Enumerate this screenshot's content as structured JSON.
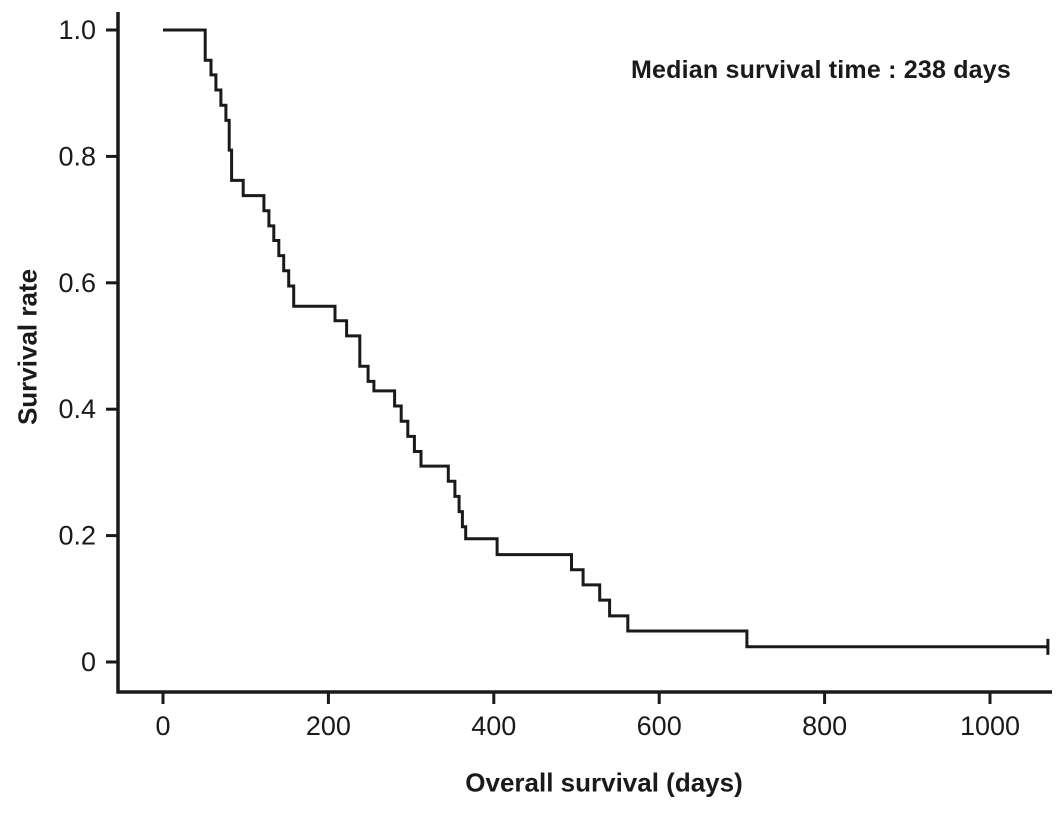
{
  "page": {
    "background": "#ffffff"
  },
  "chart_data": {
    "type": "line",
    "subtype": "kaplan-meier-step-curve",
    "annotation": "Median survival time : 238 days",
    "median_survival_days": 238,
    "xlabel": "Overall survival (days)",
    "ylabel": "Survival rate",
    "xlim": [
      0,
      1100
    ],
    "ylim": [
      0,
      1.0
    ],
    "grid": false,
    "legend_position": "none",
    "axis_color": "#1a1a1a",
    "line_color": "#1a1a1a",
    "xticks": [
      {
        "value": 0,
        "label": "0"
      },
      {
        "value": 200,
        "label": "200"
      },
      {
        "value": 400,
        "label": "400"
      },
      {
        "value": 600,
        "label": "600"
      },
      {
        "value": 800,
        "label": "800"
      },
      {
        "value": 1000,
        "label": "1000"
      }
    ],
    "yticks": [
      {
        "value": 0,
        "label": "0"
      },
      {
        "value": 0.2,
        "label": "0.2"
      },
      {
        "value": 0.4,
        "label": "0.4"
      },
      {
        "value": 0.6,
        "label": "0.6"
      },
      {
        "value": 0.8,
        "label": "0.8"
      },
      {
        "value": 1.0,
        "label": "1.0"
      }
    ],
    "series": [
      {
        "name": "Overall survival",
        "steps": [
          [
            0,
            1.0
          ],
          [
            51,
            0.952
          ],
          [
            58,
            0.929
          ],
          [
            64,
            0.905
          ],
          [
            70,
            0.881
          ],
          [
            76,
            0.857
          ],
          [
            80,
            0.81
          ],
          [
            83,
            0.762
          ],
          [
            97,
            0.738
          ],
          [
            122,
            0.714
          ],
          [
            128,
            0.69
          ],
          [
            134,
            0.667
          ],
          [
            140,
            0.643
          ],
          [
            146,
            0.619
          ],
          [
            152,
            0.595
          ],
          [
            158,
            0.563
          ],
          [
            208,
            0.54
          ],
          [
            222,
            0.516
          ],
          [
            238,
            0.468
          ],
          [
            248,
            0.444
          ],
          [
            255,
            0.429
          ],
          [
            280,
            0.405
          ],
          [
            288,
            0.381
          ],
          [
            296,
            0.357
          ],
          [
            304,
            0.333
          ],
          [
            312,
            0.31
          ],
          [
            345,
            0.286
          ],
          [
            353,
            0.262
          ],
          [
            358,
            0.238
          ],
          [
            362,
            0.214
          ],
          [
            366,
            0.195
          ],
          [
            404,
            0.17
          ],
          [
            494,
            0.146
          ],
          [
            508,
            0.122
          ],
          [
            528,
            0.098
          ],
          [
            540,
            0.073
          ],
          [
            562,
            0.049
          ],
          [
            706,
            0.024
          ],
          [
            1070,
            0.024
          ]
        ]
      }
    ],
    "censor_marks": [
      [
        1070,
        0.024
      ]
    ]
  }
}
